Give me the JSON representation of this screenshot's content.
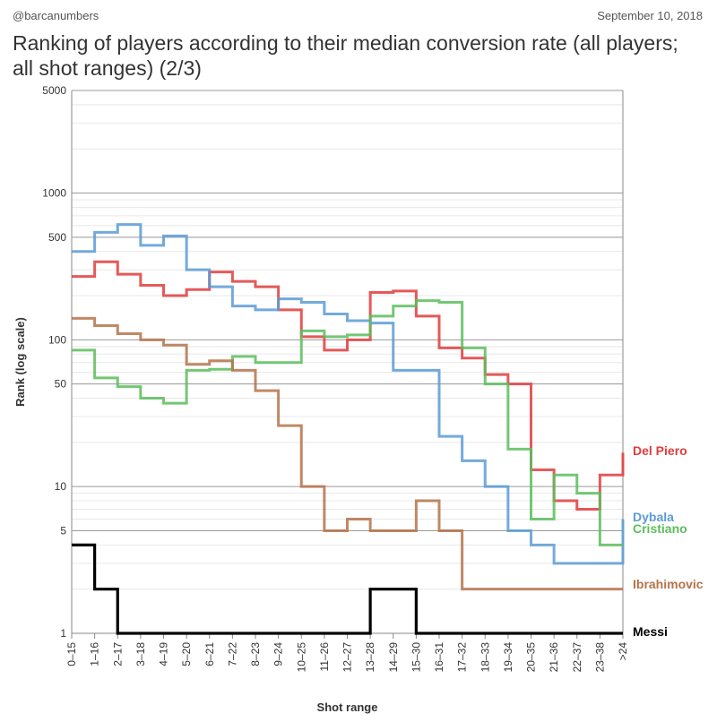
{
  "header": {
    "handle": "@barcanumbers",
    "date": "September 10, 2018",
    "title": "Ranking of players according to their median conversion rate (all players; all shot ranges) (2/3)"
  },
  "chart_data": {
    "type": "line",
    "step": true,
    "xlabel": "Shot range",
    "ylabel": "Rank (log scale)",
    "yscale": "log",
    "ylim": [
      1,
      5000
    ],
    "yticks": [
      1,
      5,
      10,
      50,
      100,
      500,
      1000,
      5000
    ],
    "categories": [
      "0–15",
      "1–16",
      "2–17",
      "3–18",
      "4–19",
      "5–20",
      "6–21",
      "7–22",
      "8–23",
      "9–24",
      "10–25",
      "11–26",
      "12–27",
      "13–28",
      "14–29",
      "15–30",
      "16–31",
      "17–32",
      "18–33",
      "19–34",
      "20–35",
      "21–36",
      "22–37",
      "23–38",
      ">24"
    ],
    "legend": "end-labels",
    "grid": "horizontal",
    "series": [
      {
        "name": "Del Piero",
        "color": "#e03c3c",
        "values": [
          270,
          340,
          280,
          235,
          200,
          220,
          290,
          250,
          230,
          160,
          105,
          85,
          100,
          210,
          215,
          145,
          88,
          75,
          58,
          50,
          13,
          8,
          7,
          12,
          17
        ]
      },
      {
        "name": "Dybala",
        "color": "#5b9bd5",
        "values": [
          400,
          540,
          610,
          440,
          510,
          300,
          230,
          170,
          160,
          190,
          180,
          150,
          135,
          130,
          62,
          62,
          22,
          15,
          10,
          5,
          4,
          3,
          3,
          3,
          6
        ]
      },
      {
        "name": "Cristiano",
        "color": "#5cbd5c",
        "values": [
          85,
          55,
          48,
          40,
          37,
          62,
          63,
          77,
          70,
          70,
          115,
          105,
          108,
          145,
          170,
          185,
          180,
          88,
          50,
          18,
          6,
          12,
          9,
          4,
          4
        ]
      },
      {
        "name": "Ibrahimovic",
        "color": "#b5734a",
        "values": [
          140,
          125,
          110,
          100,
          92,
          68,
          72,
          62,
          45,
          26,
          10,
          5,
          6,
          5,
          5,
          8,
          5,
          2,
          2,
          2,
          2,
          2,
          2,
          2,
          2
        ]
      },
      {
        "name": "Messi",
        "color": "#000000",
        "values": [
          4,
          2,
          1,
          1,
          1,
          1,
          1,
          1,
          1,
          1,
          1,
          1,
          1,
          2,
          2,
          1,
          1,
          1,
          1,
          1,
          1,
          1,
          1,
          1,
          1
        ]
      }
    ]
  }
}
